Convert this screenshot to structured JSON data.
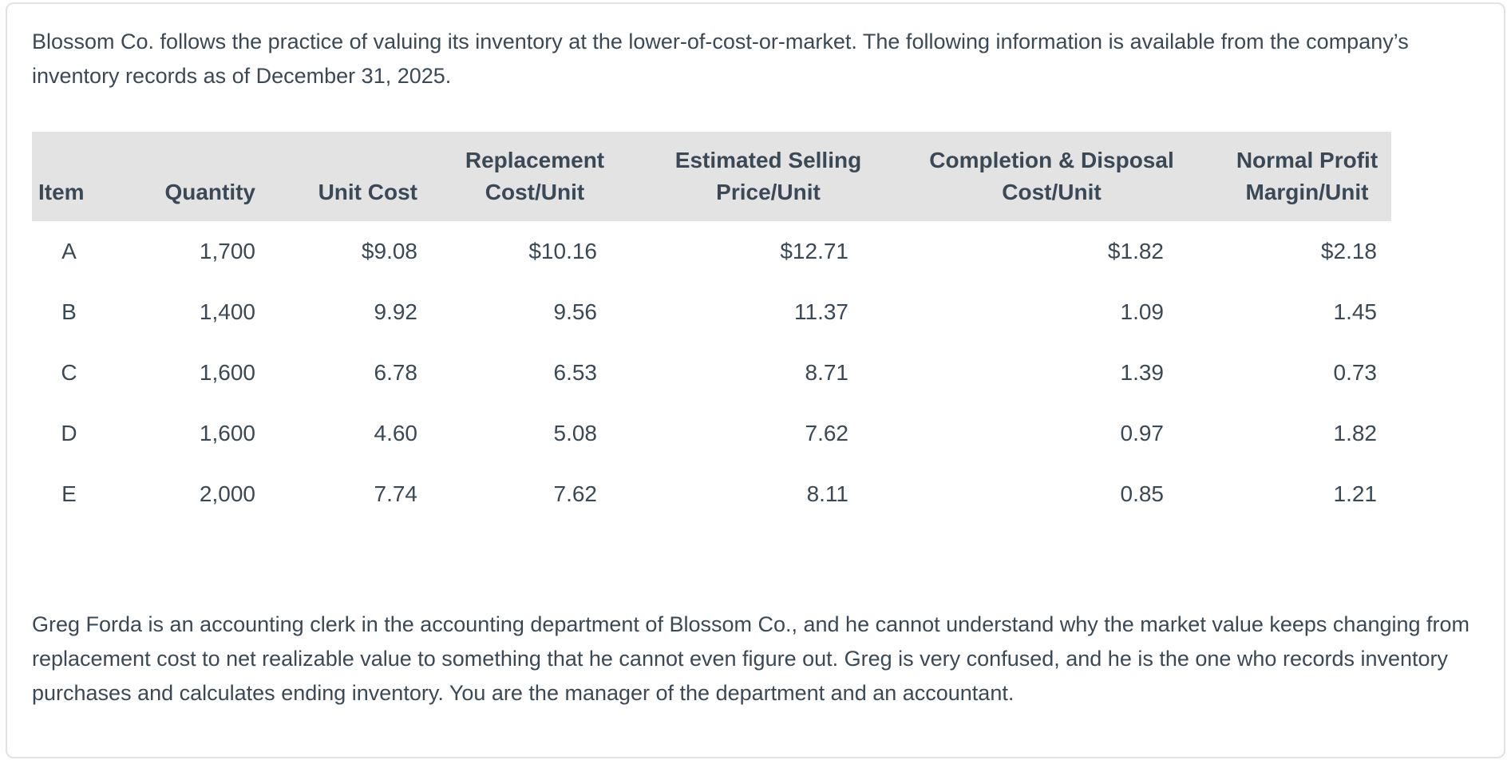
{
  "intro_paragraph": "Blossom Co. follows the practice of valuing its inventory at the lower-of-cost-or-market. The following information is available from the company’s inventory records as of December 31, 2025.",
  "table": {
    "headers": [
      "Item",
      "Quantity",
      "Unit Cost",
      "Replacement\nCost/Unit",
      "Estimated Selling\nPrice/Unit",
      "Completion & Disposal\nCost/Unit",
      "Normal Profit\nMargin/Unit"
    ],
    "rows": [
      {
        "cells": [
          "A",
          "1,700",
          "$9.08",
          "$10.16",
          "$12.71",
          "$1.82",
          "$2.18"
        ]
      },
      {
        "cells": [
          "B",
          "1,400",
          "9.92",
          "9.56",
          "11.37",
          "1.09",
          "1.45"
        ]
      },
      {
        "cells": [
          "C",
          "1,600",
          "6.78",
          "6.53",
          "8.71",
          "1.39",
          "0.73"
        ]
      },
      {
        "cells": [
          "D",
          "1,600",
          "4.60",
          "5.08",
          "7.62",
          "0.97",
          "1.82"
        ]
      },
      {
        "cells": [
          "E",
          "2,000",
          "7.74",
          "7.62",
          "8.11",
          "0.85",
          "1.21"
        ]
      }
    ]
  },
  "closing_paragraph": "Greg Forda is an accounting clerk in the accounting department of Blossom Co., and he cannot understand why the market value keeps changing from replacement cost to net realizable value to something that he cannot even figure out. Greg is very confused, and he is the one who records inventory purchases and calculates ending inventory. You are the manager of the department and an accountant.",
  "colors": {
    "text": "#3b4855",
    "table_header_bg": "#e3e3e3",
    "card_border": "#e2e2e2",
    "card_bg": "#ffffff"
  }
}
